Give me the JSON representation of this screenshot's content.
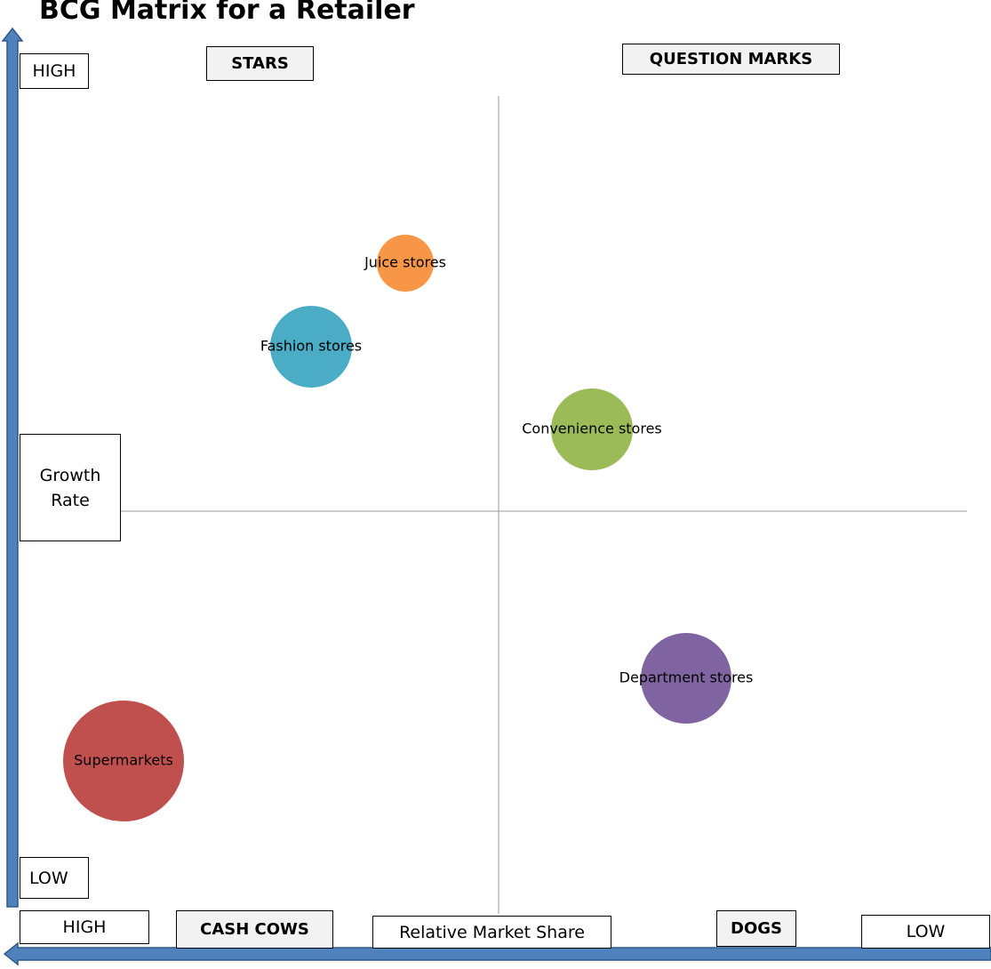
{
  "title": "BCG Matrix for a Retailer",
  "quadrants": {
    "stars": "STARS",
    "question_marks": "QUESTION MARKS",
    "cash_cows": "CASH COWS",
    "dogs": "DOGS"
  },
  "y_axis": {
    "high": "HIGH",
    "label": "Growth Rate",
    "low": "LOW"
  },
  "x_axis": {
    "high": "HIGH",
    "label": "Relative Market Share",
    "low": "LOW"
  },
  "nodes": [
    {
      "label": "Juice stores",
      "color": "#f79646"
    },
    {
      "label": "Fashion stores",
      "color": "#4bacc6"
    },
    {
      "label": "Convenience stores",
      "color": "#9bbb59"
    },
    {
      "label": "Department stores",
      "color": "#8064a2"
    },
    {
      "label": "Supermarkets",
      "color": "#c0504d"
    }
  ]
}
